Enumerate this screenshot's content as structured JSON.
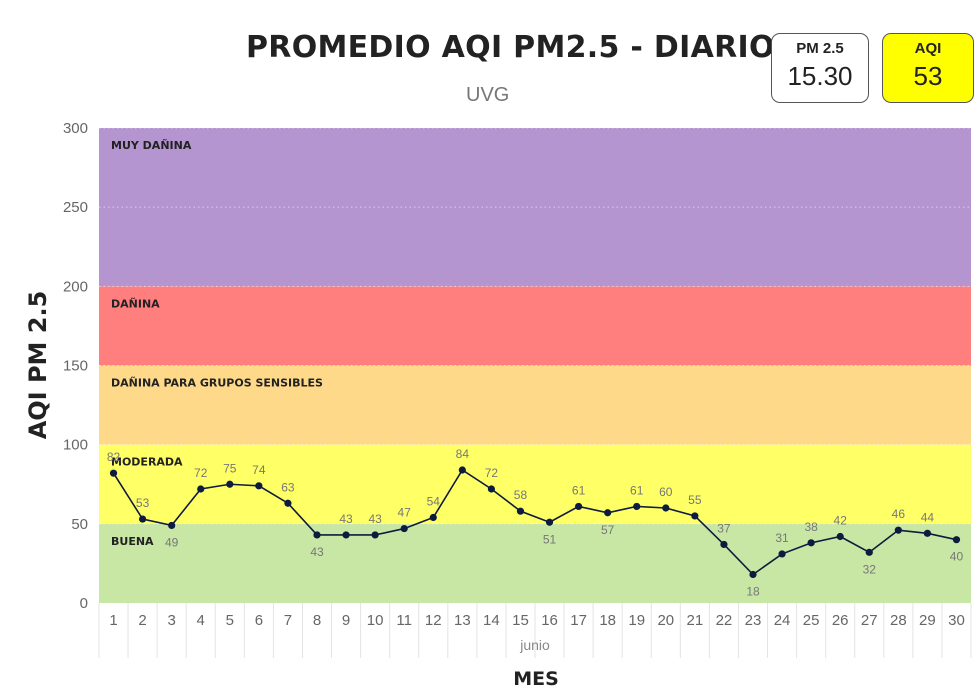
{
  "header": {
    "title": "PROMEDIO AQI PM2.5 - DIARIO",
    "subtitle": "UVG"
  },
  "kpis": {
    "pm25": {
      "label": "PM 2.5",
      "value": "15.30"
    },
    "aqi": {
      "label": "AQI",
      "value": "53",
      "color": "#ffff00"
    }
  },
  "chart_data": {
    "type": "line",
    "title": "PROMEDIO AQI PM2.5 - DIARIO",
    "subtitle": "UVG",
    "xlabel": "MES",
    "ylabel": "AQI PM 2.5",
    "x_group_label": "junio",
    "ylim": [
      0,
      300
    ],
    "yticks": [
      0,
      50,
      100,
      150,
      200,
      250,
      300
    ],
    "x": [
      1,
      2,
      3,
      4,
      5,
      6,
      7,
      8,
      9,
      10,
      11,
      12,
      13,
      14,
      15,
      16,
      17,
      18,
      19,
      20,
      21,
      22,
      23,
      24,
      25,
      26,
      27,
      28,
      29,
      30
    ],
    "values": [
      82,
      53,
      49,
      72,
      75,
      74,
      63,
      43,
      43,
      43,
      47,
      54,
      84,
      72,
      58,
      51,
      61,
      57,
      61,
      60,
      55,
      37,
      18,
      31,
      38,
      42,
      32,
      46,
      44,
      40
    ],
    "series_color": "#0d1b3e",
    "bands": [
      {
        "label": "BUENA",
        "from": 0,
        "to": 50,
        "color": "#c8e6a4"
      },
      {
        "label": "MODERADA",
        "from": 50,
        "to": 100,
        "color": "#ffff66"
      },
      {
        "label": "DAÑINA PARA GRUPOS SENSIBLES",
        "from": 100,
        "to": 150,
        "color": "#ffd98a"
      },
      {
        "label": "DAÑINA",
        "from": 150,
        "to": 200,
        "color": "#ff7f7f"
      },
      {
        "label": "MUY DAÑINA",
        "from": 200,
        "to": 300,
        "color": "#b495d0"
      }
    ],
    "grid": true
  }
}
